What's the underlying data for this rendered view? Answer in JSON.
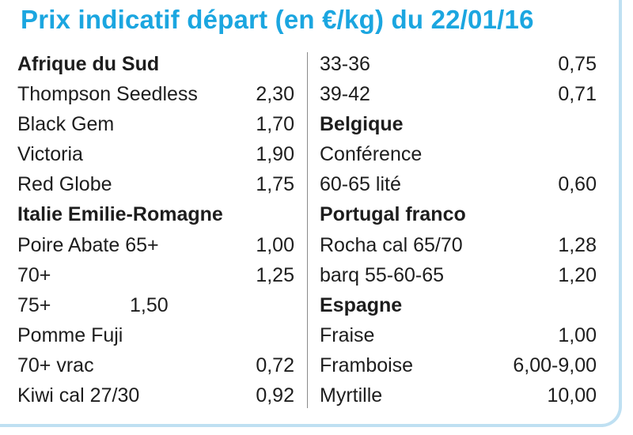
{
  "title": "Prix indicatif départ (en €/kg) du 22/01/16",
  "left_column": [
    {
      "type": "header",
      "label": "Afrique du Sud",
      "value": ""
    },
    {
      "type": "item",
      "label": "Thompson Seedless",
      "value": "2,30"
    },
    {
      "type": "item",
      "label": "Black Gem",
      "value": "1,70"
    },
    {
      "type": "item",
      "label": "Victoria",
      "value": "1,90"
    },
    {
      "type": "item",
      "label": "Red Globe",
      "value": "1,75"
    },
    {
      "type": "header",
      "label": "Italie Emilie-Romagne",
      "value": ""
    },
    {
      "type": "item",
      "label": "Poire Abate 65+",
      "value": "1,00"
    },
    {
      "type": "item",
      "label": "70+",
      "value": "1,25"
    },
    {
      "type": "inline",
      "label": "75+",
      "value": "1,50"
    },
    {
      "type": "item",
      "label": "Pomme Fuji",
      "value": ""
    },
    {
      "type": "item",
      "label": "70+ vrac",
      "value": "0,72"
    },
    {
      "type": "item",
      "label": "Kiwi cal 27/30",
      "value": "0,92"
    }
  ],
  "right_column": [
    {
      "type": "item",
      "label": "33-36",
      "value": "0,75"
    },
    {
      "type": "item",
      "label": "39-42",
      "value": "0,71"
    },
    {
      "type": "header",
      "label": "Belgique",
      "value": ""
    },
    {
      "type": "item",
      "label": "Conférence",
      "value": ""
    },
    {
      "type": "item",
      "label": "60-65 lité",
      "value": "0,60"
    },
    {
      "type": "header",
      "label": "Portugal franco",
      "value": ""
    },
    {
      "type": "item",
      "label": "Rocha cal 65/70",
      "value": "1,28"
    },
    {
      "type": "item",
      "label": "barq 55-60-65",
      "value": "1,20"
    },
    {
      "type": "header",
      "label": "Espagne",
      "value": ""
    },
    {
      "type": "item",
      "label": "Fraise",
      "value": "1,00"
    },
    {
      "type": "item",
      "label": "Framboise",
      "value": "6,00-9,00"
    },
    {
      "type": "item",
      "label": "Myrtille",
      "value": "10,00"
    }
  ],
  "colors": {
    "title": "#1ba6e0",
    "text": "#1d1d1d",
    "frame": "#bfe0f2",
    "divider": "#8a8a8a"
  }
}
